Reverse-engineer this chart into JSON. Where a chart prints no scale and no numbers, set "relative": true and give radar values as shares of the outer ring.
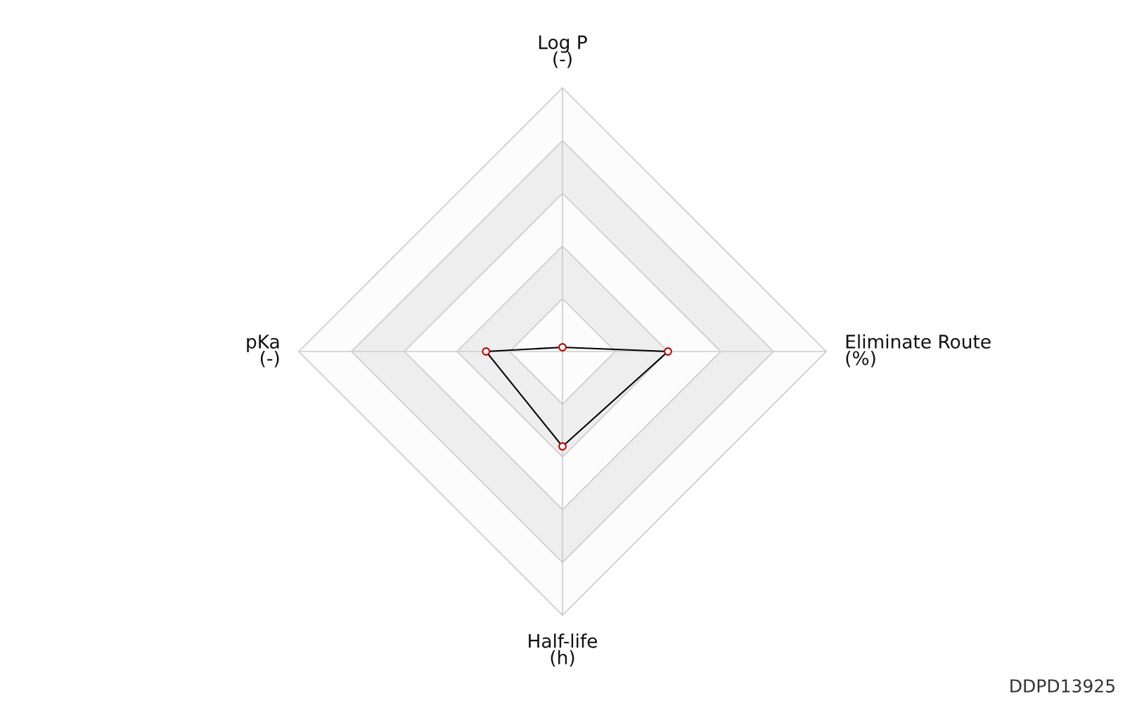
{
  "chart_data": {
    "type": "radar",
    "relative": true,
    "categories": [
      "Log P\n(-)",
      "Eliminate Route\n(%)",
      "Half-life\n(h)",
      "pKa\n(-)"
    ],
    "series": [
      {
        "color": "#000000",
        "values": [
          0.016,
          0.4,
          0.36,
          0.29
        ]
      }
    ],
    "marker": "circle",
    "line_style": "solid",
    "annotations": [
      "DDPD13925"
    ]
  }
}
